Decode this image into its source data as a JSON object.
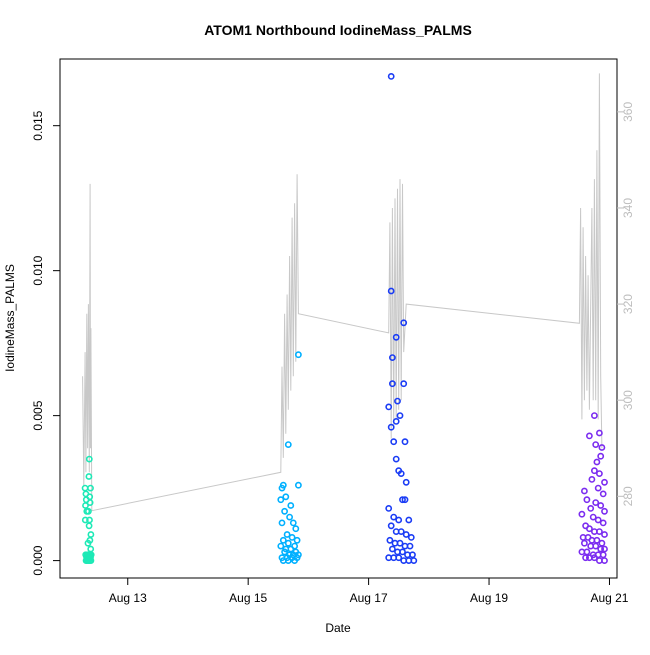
{
  "chart_data": {
    "type": "scatter",
    "title": "ATOM1 Northbound IodineMass_PALMS",
    "xlabel": "Date",
    "ylabel": "IodineMass_PALMS",
    "x_ticks": [
      "Aug 13",
      "Aug 15",
      "Aug 17",
      "Aug 19",
      "Aug 21"
    ],
    "y_ticks": [
      "0.000",
      "0.005",
      "0.010",
      "0.015"
    ],
    "y2_ticks": [
      "280",
      "300",
      "320",
      "340",
      "360"
    ],
    "xlim": [
      "2016-08-11T21:00",
      "2016-08-21T03:00"
    ],
    "ylim": [
      -0.0006,
      0.0173
    ],
    "y2lim": [
      263,
      371
    ],
    "grid": false,
    "legend": "none",
    "colors": {
      "aug12": "#1de9b6",
      "aug15": "#00b0ff",
      "aug17": "#1a3cf5",
      "aug20": "#7b2cf0",
      "secondary_line": "#c8c8c8",
      "right_axis": "#bdbdbd"
    },
    "series": [
      {
        "date": "Aug 12",
        "color_key": "aug12",
        "points": [
          [
            "2016-08-12T07:00",
            0.0025
          ],
          [
            "2016-08-12T07:20",
            0.0023
          ],
          [
            "2016-08-12T07:30",
            0.0021
          ],
          [
            "2016-08-12T07:10",
            0.0019
          ],
          [
            "2016-08-12T07:40",
            0.0017
          ],
          [
            "2016-08-12T07:05",
            0.0014
          ],
          [
            "2016-08-12T08:30",
            0.0029
          ],
          [
            "2016-08-12T08:40",
            0.0035
          ],
          [
            "2016-08-12T09:10",
            0.0025
          ],
          [
            "2016-08-12T08:50",
            0.0022
          ],
          [
            "2016-08-12T09:00",
            0.002
          ],
          [
            "2016-08-12T08:20",
            0.0017
          ],
          [
            "2016-08-12T08:45",
            0.0014
          ],
          [
            "2016-08-12T08:35",
            0.0012
          ],
          [
            "2016-08-12T09:20",
            0.0009
          ],
          [
            "2016-08-12T08:10",
            0.0006
          ],
          [
            "2016-08-12T08:55",
            0.0007
          ],
          [
            "2016-08-12T09:15",
            0.0004
          ],
          [
            "2016-08-12T07:15",
            0.0002
          ],
          [
            "2016-08-12T07:35",
            0.0001
          ],
          [
            "2016-08-12T07:50",
            0.0002
          ],
          [
            "2016-08-12T08:05",
            0.0001
          ],
          [
            "2016-08-12T08:25",
            0.0002
          ],
          [
            "2016-08-12T08:40",
            0.0001
          ],
          [
            "2016-08-12T08:55",
            0.0002
          ],
          [
            "2016-08-12T09:10",
            0.0001
          ],
          [
            "2016-08-12T09:25",
            0.0002
          ],
          [
            "2016-08-12T07:25",
            0.0
          ],
          [
            "2016-08-12T07:45",
            0.0
          ],
          [
            "2016-08-12T08:15",
            0.0
          ],
          [
            "2016-08-12T08:50",
            0.0
          ],
          [
            "2016-08-12T09:20",
            0.0
          ]
        ]
      },
      {
        "date": "Aug 15",
        "color_key": "aug15",
        "points": [
          [
            "2016-08-15T20:00",
            0.0071
          ],
          [
            "2016-08-15T16:00",
            0.004
          ],
          [
            "2016-08-15T14:00",
            0.0026
          ],
          [
            "2016-08-15T13:30",
            0.0025
          ],
          [
            "2016-08-15T20:00",
            0.0026
          ],
          [
            "2016-08-15T13:00",
            0.0021
          ],
          [
            "2016-08-15T15:00",
            0.0022
          ],
          [
            "2016-08-15T17:00",
            0.0019
          ],
          [
            "2016-08-15T14:30",
            0.0017
          ],
          [
            "2016-08-15T16:30",
            0.0015
          ],
          [
            "2016-08-15T18:00",
            0.0013
          ],
          [
            "2016-08-15T19:00",
            0.0011
          ],
          [
            "2016-08-15T13:30",
            0.0013
          ],
          [
            "2016-08-15T15:30",
            0.0009
          ],
          [
            "2016-08-15T17:30",
            0.0008
          ],
          [
            "2016-08-15T19:30",
            0.0007
          ],
          [
            "2016-08-15T14:00",
            0.0007
          ],
          [
            "2016-08-15T16:00",
            0.0006
          ],
          [
            "2016-08-15T18:30",
            0.0005
          ],
          [
            "2016-08-15T13:00",
            0.0005
          ],
          [
            "2016-08-15T15:00",
            0.0004
          ],
          [
            "2016-08-15T17:00",
            0.0004
          ],
          [
            "2016-08-15T19:00",
            0.0003
          ],
          [
            "2016-08-15T14:30",
            0.0003
          ],
          [
            "2016-08-15T16:30",
            0.0002
          ],
          [
            "2016-08-15T18:00",
            0.0002
          ],
          [
            "2016-08-15T20:00",
            0.0002
          ],
          [
            "2016-08-15T13:30",
            0.0001
          ],
          [
            "2016-08-15T15:30",
            0.0001
          ],
          [
            "2016-08-15T17:30",
            0.0001
          ],
          [
            "2016-08-15T19:30",
            0.0001
          ],
          [
            "2016-08-15T14:00",
            0.0
          ],
          [
            "2016-08-15T16:00",
            0.0
          ],
          [
            "2016-08-15T18:30",
            0.0
          ]
        ]
      },
      {
        "date": "Aug 17",
        "color_key": "aug17",
        "points": [
          [
            "2016-08-17T09:00",
            0.0167
          ],
          [
            "2016-08-17T09:00",
            0.0093
          ],
          [
            "2016-08-17T14:00",
            0.0082
          ],
          [
            "2016-08-17T11:00",
            0.0077
          ],
          [
            "2016-08-17T09:30",
            0.007
          ],
          [
            "2016-08-17T09:30",
            0.0061
          ],
          [
            "2016-08-17T14:00",
            0.0061
          ],
          [
            "2016-08-17T11:30",
            0.0055
          ],
          [
            "2016-08-17T08:00",
            0.0053
          ],
          [
            "2016-08-17T12:30",
            0.005
          ],
          [
            "2016-08-17T09:00",
            0.0046
          ],
          [
            "2016-08-17T11:00",
            0.0048
          ],
          [
            "2016-08-17T10:00",
            0.0041
          ],
          [
            "2016-08-17T14:30",
            0.0041
          ],
          [
            "2016-08-17T11:00",
            0.0035
          ],
          [
            "2016-08-17T12:00",
            0.0031
          ],
          [
            "2016-08-17T13:00",
            0.003
          ],
          [
            "2016-08-17T15:00",
            0.0027
          ],
          [
            "2016-08-17T13:30",
            0.0021
          ],
          [
            "2016-08-17T14:30",
            0.0021
          ],
          [
            "2016-08-17T08:00",
            0.0018
          ],
          [
            "2016-08-17T10:00",
            0.0015
          ],
          [
            "2016-08-17T12:00",
            0.0014
          ],
          [
            "2016-08-17T16:00",
            0.0014
          ],
          [
            "2016-08-17T09:00",
            0.0012
          ],
          [
            "2016-08-17T11:00",
            0.001
          ],
          [
            "2016-08-17T13:00",
            0.001
          ],
          [
            "2016-08-17T15:00",
            0.0009
          ],
          [
            "2016-08-17T17:00",
            0.0008
          ],
          [
            "2016-08-17T08:30",
            0.0007
          ],
          [
            "2016-08-17T10:30",
            0.0006
          ],
          [
            "2016-08-17T12:30",
            0.0006
          ],
          [
            "2016-08-17T14:30",
            0.0005
          ],
          [
            "2016-08-17T16:30",
            0.0005
          ],
          [
            "2016-08-17T09:30",
            0.0004
          ],
          [
            "2016-08-17T11:30",
            0.0003
          ],
          [
            "2016-08-17T13:30",
            0.0003
          ],
          [
            "2016-08-17T15:30",
            0.0002
          ],
          [
            "2016-08-17T17:30",
            0.0002
          ],
          [
            "2016-08-17T08:00",
            0.0001
          ],
          [
            "2016-08-17T10:00",
            0.0001
          ],
          [
            "2016-08-17T12:00",
            0.0001
          ],
          [
            "2016-08-17T14:00",
            0.0
          ],
          [
            "2016-08-17T16:00",
            0.0
          ],
          [
            "2016-08-17T18:00",
            0.0
          ]
        ]
      },
      {
        "date": "Aug 20",
        "color_key": "aug20",
        "points": [
          [
            "2016-08-20T18:00",
            0.005
          ],
          [
            "2016-08-20T20:00",
            0.0044
          ],
          [
            "2016-08-20T16:00",
            0.0043
          ],
          [
            "2016-08-20T21:00",
            0.0039
          ],
          [
            "2016-08-20T18:30",
            0.004
          ],
          [
            "2016-08-20T20:30",
            0.0036
          ],
          [
            "2016-08-20T19:00",
            0.0034
          ],
          [
            "2016-08-20T18:00",
            0.0031
          ],
          [
            "2016-08-20T20:00",
            0.003
          ],
          [
            "2016-08-20T17:00",
            0.0028
          ],
          [
            "2016-08-20T22:00",
            0.0027
          ],
          [
            "2016-08-20T19:30",
            0.0025
          ],
          [
            "2016-08-20T14:00",
            0.0024
          ],
          [
            "2016-08-20T21:30",
            0.0023
          ],
          [
            "2016-08-20T15:00",
            0.0021
          ],
          [
            "2016-08-20T18:30",
            0.002
          ],
          [
            "2016-08-20T20:30",
            0.0019
          ],
          [
            "2016-08-20T16:30",
            0.0018
          ],
          [
            "2016-08-20T22:00",
            0.0017
          ],
          [
            "2016-08-20T13:00",
            0.0016
          ],
          [
            "2016-08-20T17:30",
            0.0015
          ],
          [
            "2016-08-20T19:30",
            0.0014
          ],
          [
            "2016-08-20T21:30",
            0.0013
          ],
          [
            "2016-08-20T14:30",
            0.0012
          ],
          [
            "2016-08-20T16:00",
            0.0011
          ],
          [
            "2016-08-20T18:00",
            0.001
          ],
          [
            "2016-08-20T20:00",
            0.001
          ],
          [
            "2016-08-20T22:00",
            0.0009
          ],
          [
            "2016-08-20T13:30",
            0.0008
          ],
          [
            "2016-08-20T15:30",
            0.0008
          ],
          [
            "2016-08-20T17:00",
            0.0007
          ],
          [
            "2016-08-20T19:00",
            0.0007
          ],
          [
            "2016-08-20T21:00",
            0.0006
          ],
          [
            "2016-08-20T14:00",
            0.0006
          ],
          [
            "2016-08-20T16:30",
            0.0005
          ],
          [
            "2016-08-20T18:30",
            0.0005
          ],
          [
            "2016-08-20T20:30",
            0.0004
          ],
          [
            "2016-08-20T22:00",
            0.0004
          ],
          [
            "2016-08-20T13:00",
            0.0003
          ],
          [
            "2016-08-20T15:00",
            0.0003
          ],
          [
            "2016-08-20T17:30",
            0.0002
          ],
          [
            "2016-08-20T19:30",
            0.0002
          ],
          [
            "2016-08-20T21:30",
            0.0002
          ],
          [
            "2016-08-20T14:30",
            0.0001
          ],
          [
            "2016-08-20T16:00",
            0.0001
          ],
          [
            "2016-08-20T18:00",
            0.0001
          ],
          [
            "2016-08-20T20:00",
            0.0
          ],
          [
            "2016-08-20T22:00",
            0.0
          ]
        ]
      }
    ],
    "secondary_line": {
      "axis": "right",
      "points": [
        [
          "2016-08-12T06:00",
          305
        ],
        [
          "2016-08-12T06:30",
          282
        ],
        [
          "2016-08-12T07:00",
          310
        ],
        [
          "2016-08-12T07:20",
          285
        ],
        [
          "2016-08-12T07:40",
          318
        ],
        [
          "2016-08-12T08:00",
          290
        ],
        [
          "2016-08-12T08:20",
          320
        ],
        [
          "2016-08-12T08:40",
          285
        ],
        [
          "2016-08-12T09:00",
          345
        ],
        [
          "2016-08-12T09:10",
          290
        ],
        [
          "2016-08-12T09:20",
          315
        ],
        [
          "2016-08-12T09:40",
          277
        ],
        [
          "2016-08-15T13:00",
          285
        ],
        [
          "2016-08-15T13:30",
          307
        ],
        [
          "2016-08-15T14:00",
          288
        ],
        [
          "2016-08-15T14:30",
          318
        ],
        [
          "2016-08-15T15:00",
          293
        ],
        [
          "2016-08-15T15:30",
          322
        ],
        [
          "2016-08-15T16:00",
          298
        ],
        [
          "2016-08-15T16:30",
          330
        ],
        [
          "2016-08-15T17:00",
          302
        ],
        [
          "2016-08-15T17:30",
          338
        ],
        [
          "2016-08-15T18:00",
          305
        ],
        [
          "2016-08-15T18:30",
          341
        ],
        [
          "2016-08-15T19:00",
          308
        ],
        [
          "2016-08-15T19:30",
          347
        ],
        [
          "2016-08-15T20:00",
          318
        ],
        [
          "2016-08-17T08:00",
          314
        ],
        [
          "2016-08-17T08:30",
          337
        ],
        [
          "2016-08-17T09:00",
          292
        ],
        [
          "2016-08-17T09:30",
          340
        ],
        [
          "2016-08-17T10:00",
          294
        ],
        [
          "2016-08-17T10:30",
          342
        ],
        [
          "2016-08-17T11:00",
          296
        ],
        [
          "2016-08-17T11:30",
          344
        ],
        [
          "2016-08-17T12:00",
          298
        ],
        [
          "2016-08-17T12:30",
          346
        ],
        [
          "2016-08-17T13:00",
          300
        ],
        [
          "2016-08-17T13:30",
          345
        ],
        [
          "2016-08-17T14:00",
          310
        ],
        [
          "2016-08-17T15:00",
          320
        ],
        [
          "2016-08-20T12:00",
          316
        ],
        [
          "2016-08-20T12:30",
          340
        ],
        [
          "2016-08-20T13:00",
          296
        ],
        [
          "2016-08-20T13:30",
          336
        ],
        [
          "2016-08-20T14:00",
          300
        ],
        [
          "2016-08-20T14:30",
          330
        ],
        [
          "2016-08-20T15:00",
          302
        ],
        [
          "2016-08-20T15:30",
          326
        ],
        [
          "2016-08-20T16:00",
          298
        ],
        [
          "2016-08-20T17:00",
          340
        ],
        [
          "2016-08-20T17:30",
          300
        ],
        [
          "2016-08-20T18:00",
          346
        ],
        [
          "2016-08-20T18:30",
          300
        ],
        [
          "2016-08-20T19:00",
          352
        ],
        [
          "2016-08-20T19:30",
          296
        ],
        [
          "2016-08-20T20:00",
          368
        ],
        [
          "2016-08-20T20:30",
          305
        ],
        [
          "2016-08-20T21:00",
          290
        ]
      ]
    }
  }
}
